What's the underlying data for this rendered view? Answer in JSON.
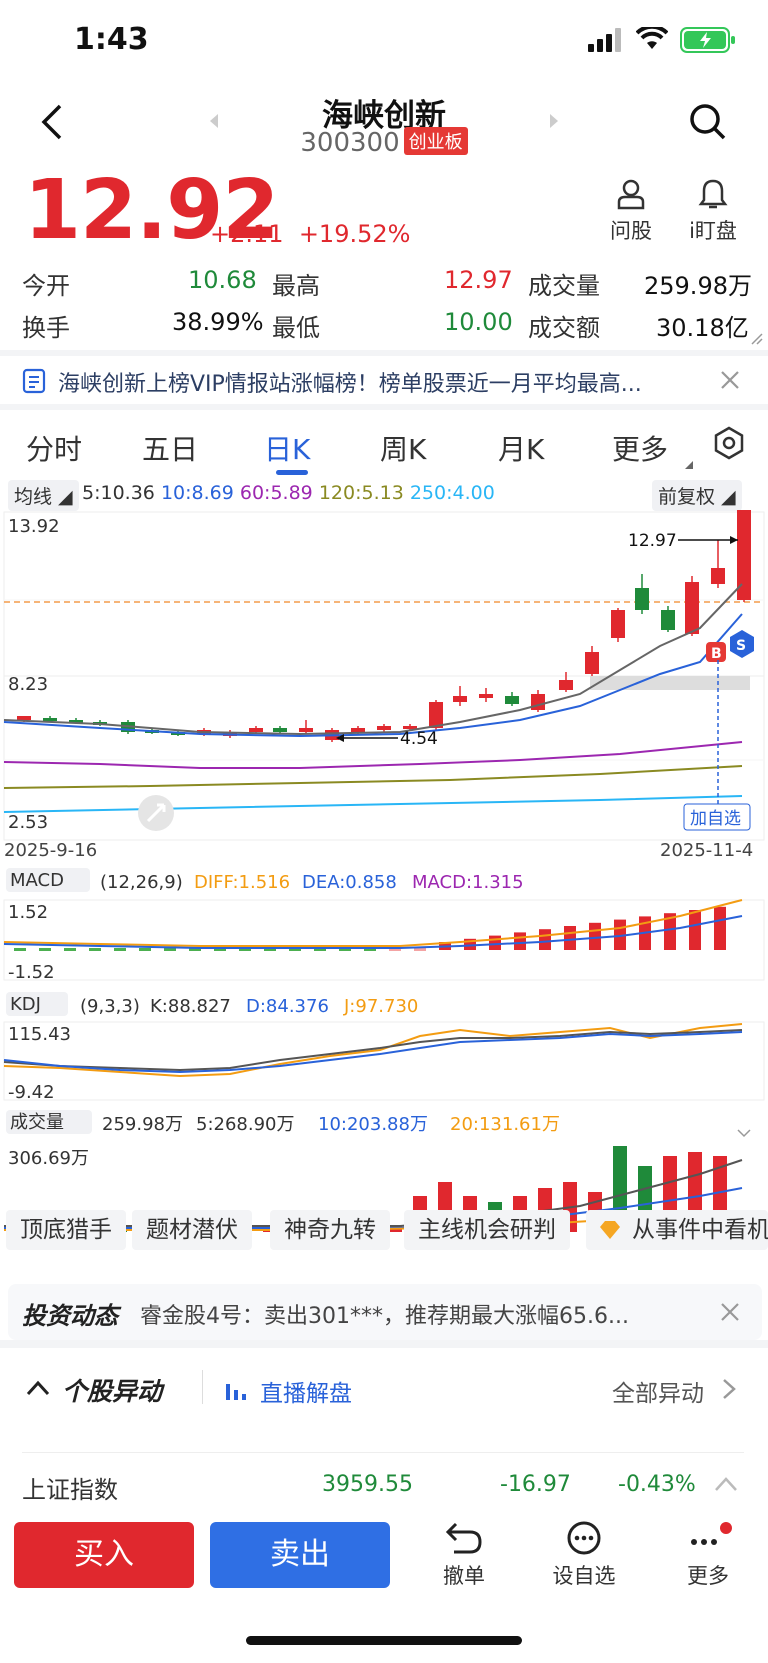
{
  "status_bar": {
    "time": "1:43"
  },
  "header": {
    "stock_name": "海峡创新",
    "code": "300300",
    "board": "创业板"
  },
  "quote": {
    "price": "12.92",
    "change": "+2.11",
    "change_pct": "+19.52%"
  },
  "actions": {
    "ask": "问股",
    "watch": "i盯盘"
  },
  "stats": {
    "open_label": "今开",
    "open": "10.68",
    "high_label": "最高",
    "high": "12.97",
    "volume_label": "成交量",
    "volume": "259.98万",
    "turnover_label": "换手",
    "turnover": "38.99%",
    "low_label": "最低",
    "low": "10.00",
    "amount_label": "成交额",
    "amount": "30.18亿"
  },
  "notice": "海峡创新上榜VIP情报站涨幅榜！榜单股票近一月平均最高...",
  "tabs": [
    "分时",
    "五日",
    "日K",
    "周K",
    "月K",
    "更多"
  ],
  "ma_bar": {
    "label": "均线",
    "ma5": "5:10.36",
    "ma10": "10:8.69",
    "ma60": "60:5.89",
    "ma120": "120:5.13",
    "ma250": "250:4.00",
    "adjust": "前复权"
  },
  "kline": {
    "y_top": "13.92",
    "y_mid": "8.23",
    "y_bottom": "2.53",
    "date_start": "2025-9-16",
    "date_end": "2025-11-4",
    "high_marker": "12.97",
    "low_marker": "4.54",
    "add_watch": "加自选",
    "buy_mark": "B",
    "sell_mark": "S"
  },
  "macd": {
    "label": "MACD",
    "params": "(12,26,9)",
    "diff": "DIFF:1.516",
    "dea": "DEA:0.858",
    "macd": "MACD:1.315",
    "y_top": "1.52",
    "y_bottom": "-1.52"
  },
  "kdj": {
    "label": "KDJ",
    "params": "(9,3,3)",
    "k": "K:88.827",
    "d": "D:84.376",
    "j": "J:97.730",
    "y_top": "115.43",
    "y_bottom": "-9.42"
  },
  "vol": {
    "label": "成交量",
    "cur": "259.98万",
    "v5": "5:268.90万",
    "v10": "10:203.88万",
    "v20": "20:131.61万",
    "y_top": "306.69万"
  },
  "pills": [
    "顶底猎手",
    "题材潜伏",
    "神奇九转",
    "主线机会研判",
    "从事件中看机"
  ],
  "invest": {
    "title": "投资动态",
    "text": "睿金股4号：卖出301***，推荐期最大涨幅65.6..."
  },
  "movers": {
    "title": "个股异动",
    "live": "直播解盘",
    "all": "全部异动"
  },
  "index": {
    "name": "上证指数",
    "value": "3959.55",
    "change": "-16.97",
    "pct": "-0.43%"
  },
  "bottom": {
    "buy": "买入",
    "sell": "卖出",
    "cancel": "撤单",
    "add": "设自选",
    "more": "更多"
  },
  "colors": {
    "up": "#e0282e",
    "down": "#1f8a3a",
    "accent": "#2962d9"
  }
}
